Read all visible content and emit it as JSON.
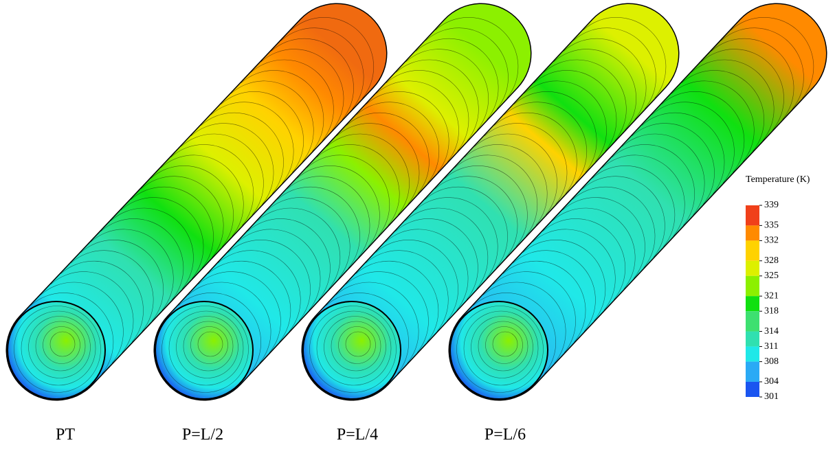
{
  "panels": [
    {
      "label": "PT"
    },
    {
      "label": "P=L/2"
    },
    {
      "label": "P=L/4"
    },
    {
      "label": "P=L/6"
    }
  ],
  "colorbar": {
    "title": "Temperature (K)",
    "ticks": [
      339,
      335,
      332,
      328,
      325,
      321,
      318,
      314,
      311,
      308,
      304,
      301
    ],
    "colors": [
      "#f0401a",
      "#ff8a00",
      "#ffd200",
      "#ddf000",
      "#8cf000",
      "#10e010",
      "#3de070",
      "#30e0b0",
      "#20e8e8",
      "#2aaaf5",
      "#1a55f0"
    ]
  }
}
